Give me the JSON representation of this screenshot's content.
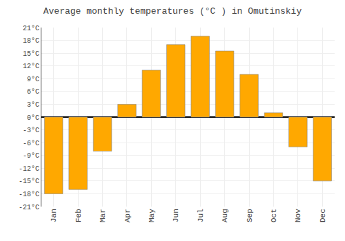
{
  "chart_data": {
    "type": "bar",
    "title": "Average monthly temperatures (°C ) in Omutinskiy",
    "categories": [
      "Jan",
      "Feb",
      "Mar",
      "Apr",
      "May",
      "Jun",
      "Jul",
      "Aug",
      "Sep",
      "Oct",
      "Nov",
      "Dec"
    ],
    "values": [
      -18,
      -17,
      -8,
      3,
      11,
      17,
      19,
      15.5,
      10,
      1,
      -7,
      -15
    ],
    "color": "#FFA800",
    "ylim": [
      -21,
      21
    ],
    "yticks": [
      {
        "value": -21,
        "label": "-21°C"
      },
      {
        "value": -18,
        "label": "-18°C"
      },
      {
        "value": -15,
        "label": "-15°C"
      },
      {
        "value": -12,
        "label": "-12°C"
      },
      {
        "value": -9,
        "label": "-9°C"
      },
      {
        "value": -6,
        "label": "-6°C"
      },
      {
        "value": -3,
        "label": "-3°C"
      },
      {
        "value": 0,
        "label": "0°C"
      },
      {
        "value": 3,
        "label": "3°C"
      },
      {
        "value": 6,
        "label": "6°C"
      },
      {
        "value": 9,
        "label": "9°C"
      },
      {
        "value": 12,
        "label": "12°C"
      },
      {
        "value": 15,
        "label": "15°C"
      },
      {
        "value": 18,
        "label": "18°C"
      },
      {
        "value": 21,
        "label": "21°C"
      }
    ],
    "grid": true
  }
}
